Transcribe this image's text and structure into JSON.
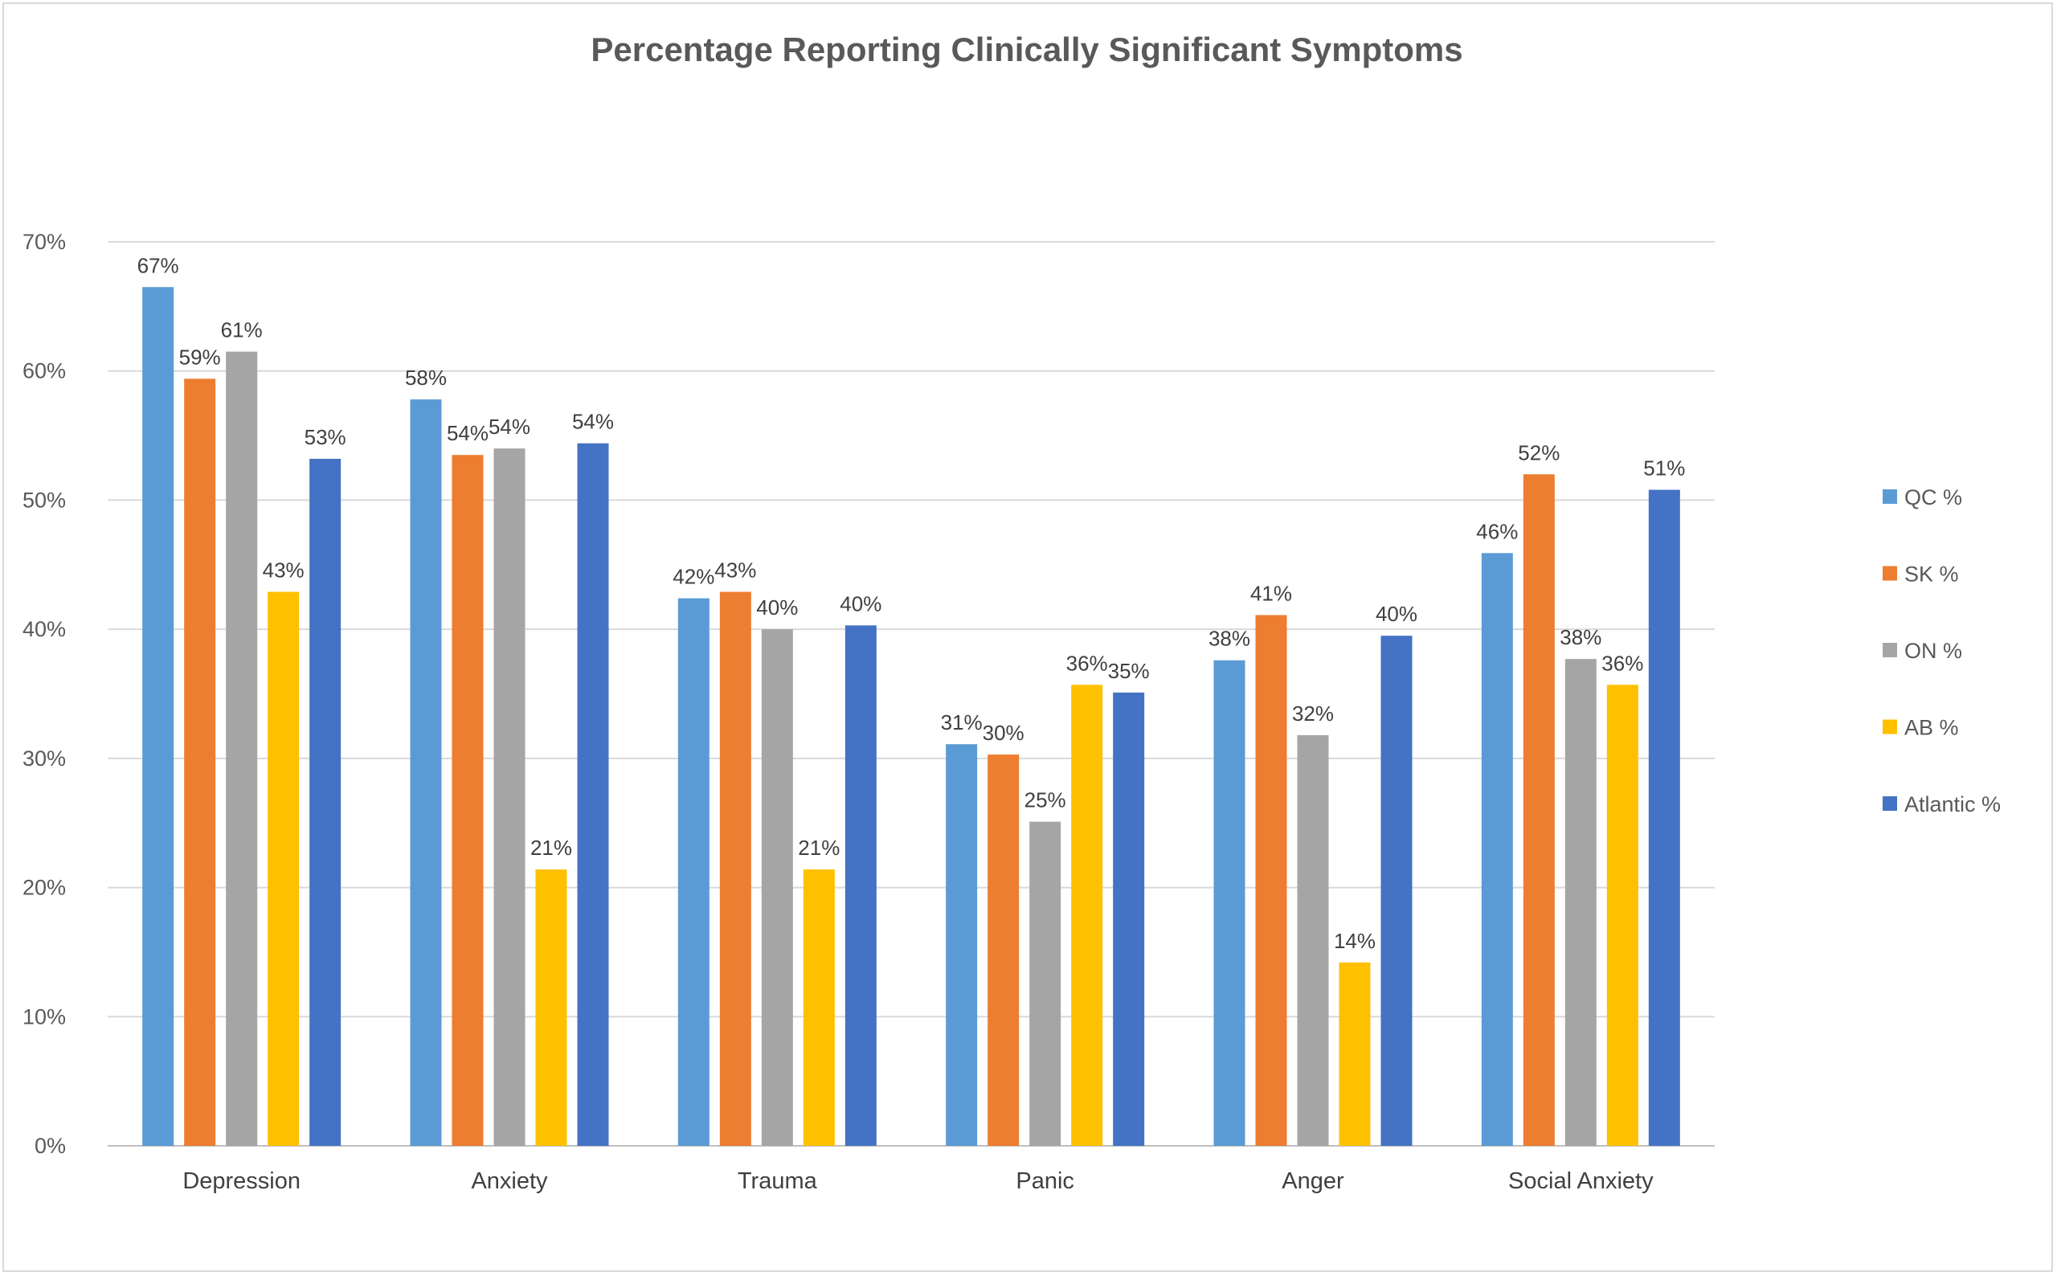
{
  "chart_data": {
    "type": "bar",
    "title": "Percentage Reporting Clinically Significant Symptoms",
    "xlabel": "",
    "ylabel": "",
    "ylim": [
      0,
      70
    ],
    "y_ticks": [
      0,
      10,
      20,
      30,
      40,
      50,
      60,
      70
    ],
    "y_tick_labels": [
      "0%",
      "10%",
      "20%",
      "30%",
      "40%",
      "50%",
      "60%",
      "70%"
    ],
    "grid": true,
    "legend_position": "right",
    "categories": [
      "Depression",
      "Anxiety",
      "Trauma",
      "Panic",
      "Anger",
      "Social Anxiety"
    ],
    "series": [
      {
        "name": "QC %",
        "color": "#5b9bd5",
        "values": [
          66.5,
          57.8,
          42.4,
          31.1,
          37.6,
          45.9
        ],
        "labels": [
          "67%",
          "58%",
          "42%",
          "31%",
          "38%",
          "46%"
        ]
      },
      {
        "name": "SK %",
        "color": "#ed7d31",
        "values": [
          59.4,
          53.5,
          42.9,
          30.3,
          41.1,
          52.0
        ],
        "labels": [
          "59%",
          "54%",
          "43%",
          "30%",
          "41%",
          "52%"
        ]
      },
      {
        "name": "ON %",
        "color": "#a5a5a5",
        "values": [
          61.5,
          54.0,
          40.0,
          25.1,
          31.8,
          37.7
        ],
        "labels": [
          "61%",
          "54%",
          "40%",
          "25%",
          "32%",
          "38%"
        ]
      },
      {
        "name": "AB %",
        "color": "#ffc000",
        "values": [
          42.9,
          21.4,
          21.4,
          35.7,
          14.2,
          35.7
        ],
        "labels": [
          "43%",
          "21%",
          "21%",
          "36%",
          "14%",
          "36%"
        ]
      },
      {
        "name": "Atlantic %",
        "color": "#4472c4",
        "values": [
          53.2,
          54.4,
          40.3,
          35.1,
          39.5,
          50.8
        ],
        "labels": [
          "53%",
          "54%",
          "40%",
          "35%",
          "40%",
          "51%"
        ]
      }
    ]
  },
  "colors": {
    "grid": "#d9d9d9",
    "axis": "#bfbfbf",
    "text": "#595959",
    "border": "#d9d9d9"
  }
}
